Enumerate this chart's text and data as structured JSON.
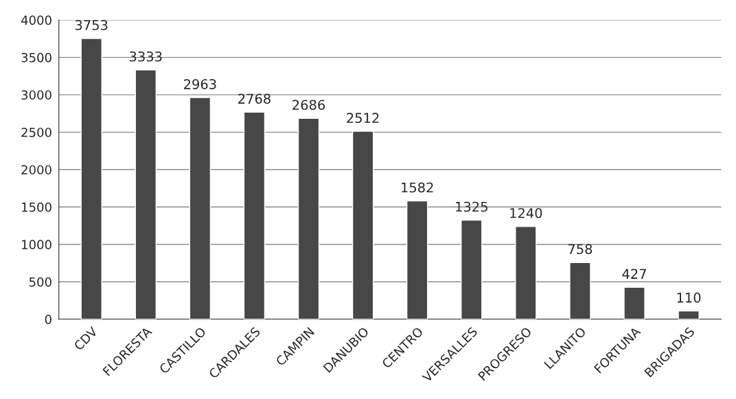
{
  "chart_data": {
    "type": "bar",
    "categories": [
      "CDV",
      "FLORESTA",
      "CASTILLO",
      "CARDALES",
      "CAMPIN",
      "DANUBIO",
      "CENTRO",
      "VERSALLES",
      "PROGRESO",
      "LLANITO",
      "FORTUNA",
      "BRIGADAS"
    ],
    "values": [
      3753,
      3333,
      2963,
      2768,
      2686,
      2512,
      1582,
      1325,
      1240,
      758,
      427,
      110
    ],
    "color": "#474747",
    "ylim": [
      0,
      4000
    ],
    "yticks": [
      0,
      500,
      1000,
      1500,
      2000,
      2500,
      3000,
      3500,
      4000
    ],
    "grid": "y",
    "data_labels": true
  }
}
